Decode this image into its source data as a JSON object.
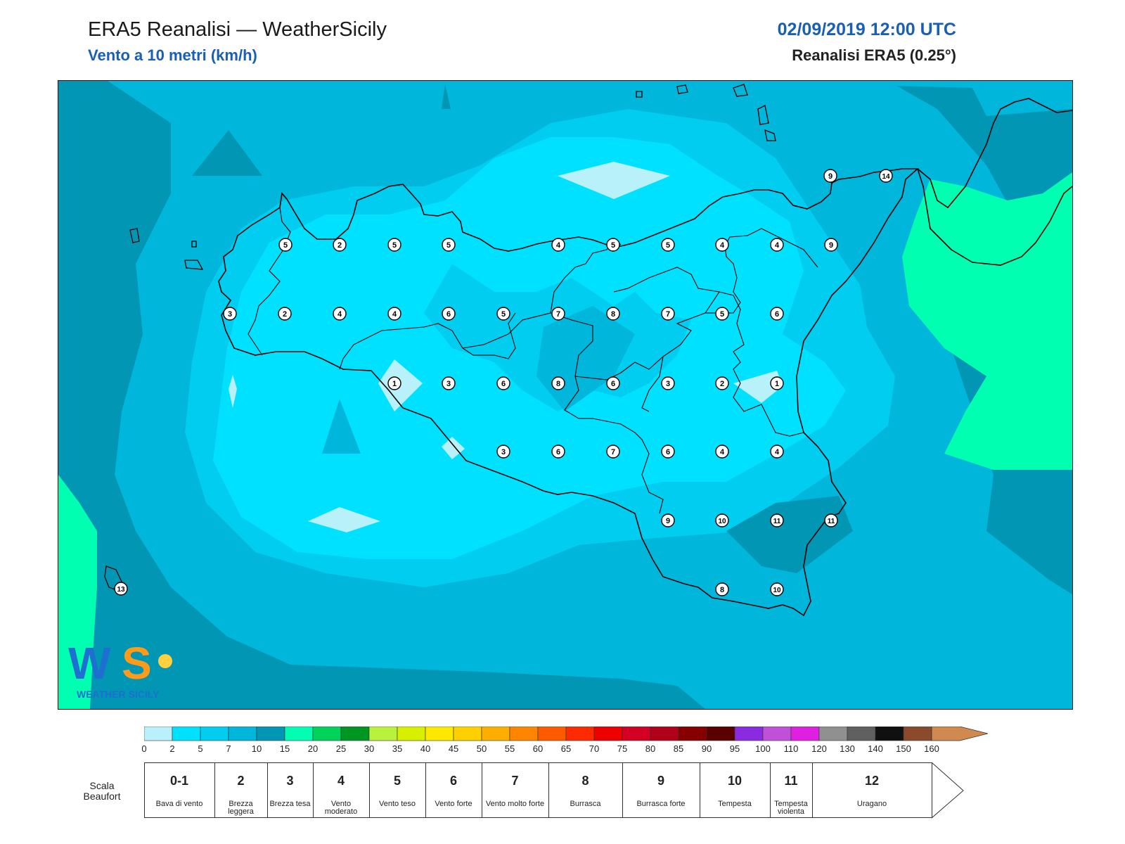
{
  "header": {
    "title": "ERA5 Reanalisi — WeatherSicily",
    "subtitle": "Vento a 10 metri (km/h)",
    "datetime": "02/09/2019 12:00 UTC",
    "model": "Reanalisi ERA5 (0.25°)"
  },
  "map": {
    "type": "filled-contour wind speed map",
    "region": "Sicily",
    "coastline_color": "#000000",
    "stations": [
      {
        "value": 13
      },
      {
        "value": 9
      },
      {
        "value": 14
      },
      {
        "value": 5
      },
      {
        "value": 2
      },
      {
        "value": 5
      },
      {
        "value": 5
      },
      {
        "value": 4
      },
      {
        "value": 5
      },
      {
        "value": 5
      },
      {
        "value": 4
      },
      {
        "value": 4
      },
      {
        "value": 9
      },
      {
        "value": 3
      },
      {
        "value": 2
      },
      {
        "value": 4
      },
      {
        "value": 4
      },
      {
        "value": 6
      },
      {
        "value": 5
      },
      {
        "value": 7
      },
      {
        "value": 8
      },
      {
        "value": 7
      },
      {
        "value": 5
      },
      {
        "value": 6
      },
      {
        "value": 1
      },
      {
        "value": 3
      },
      {
        "value": 6
      },
      {
        "value": 8
      },
      {
        "value": 6
      },
      {
        "value": 3
      },
      {
        "value": 2
      },
      {
        "value": 1
      },
      {
        "value": 3
      },
      {
        "value": 6
      },
      {
        "value": 7
      },
      {
        "value": 6
      },
      {
        "value": 4
      },
      {
        "value": 4
      },
      {
        "value": 9
      },
      {
        "value": 10
      },
      {
        "value": 11
      },
      {
        "value": 11
      },
      {
        "value": 8
      },
      {
        "value": 10
      }
    ]
  },
  "logo": {
    "text": "WEATHER SICILY",
    "letters": "WS"
  },
  "colorbar": {
    "ticks": [
      "0",
      "2",
      "5",
      "7",
      "10",
      "15",
      "20",
      "25",
      "30",
      "35",
      "40",
      "45",
      "50",
      "55",
      "60",
      "65",
      "70",
      "75",
      "80",
      "85",
      "90",
      "95",
      "100",
      "110",
      "120",
      "130",
      "140",
      "150",
      "160"
    ],
    "colors": [
      "#b9f1fb",
      "#00e1ff",
      "#00cdf0",
      "#00b6da",
      "#0096b4",
      "#00ffb0",
      "#00d25a",
      "#009622",
      "#b8f23c",
      "#d6f000",
      "#ffe800",
      "#ffd000",
      "#ffae00",
      "#ff8400",
      "#ff5a00",
      "#ff2a00",
      "#ee0000",
      "#d40024",
      "#b0001a",
      "#860000",
      "#5a0000",
      "#8a2be2",
      "#c050d8",
      "#e020e0",
      "#909090",
      "#606060",
      "#101010",
      "#8b4a2b",
      "#d08a50"
    ]
  },
  "beaufort": {
    "label": "Scala Beaufort",
    "classes": [
      {
        "num": "0-1",
        "desc": "Bava di vento"
      },
      {
        "num": "2",
        "desc": "Brezza leggera"
      },
      {
        "num": "3",
        "desc": "Brezza tesa"
      },
      {
        "num": "4",
        "desc": "Vento moderato"
      },
      {
        "num": "5",
        "desc": "Vento teso"
      },
      {
        "num": "6",
        "desc": "Vento forte"
      },
      {
        "num": "7",
        "desc": "Vento molto forte"
      },
      {
        "num": "8",
        "desc": "Burrasca"
      },
      {
        "num": "9",
        "desc": "Burrasca forte"
      },
      {
        "num": "10",
        "desc": "Tempesta"
      },
      {
        "num": "11",
        "desc": "Tempesta violenta"
      },
      {
        "num": "12",
        "desc": "Uragano"
      }
    ]
  }
}
